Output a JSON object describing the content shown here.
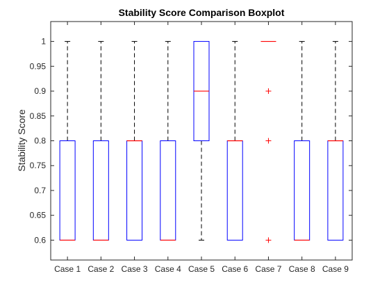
{
  "chart_data": {
    "type": "boxplot",
    "title": "Stability Score Comparison Boxplot",
    "xlabel": "",
    "ylabel": "Stability Score",
    "ylim": [
      0.56,
      1.04
    ],
    "yticks": [
      0.6,
      0.65,
      0.7,
      0.75,
      0.8,
      0.85,
      0.9,
      0.95,
      1
    ],
    "ytick_labels": [
      "0.6",
      "0.65",
      "0.7",
      "0.75",
      "0.8",
      "0.85",
      "0.9",
      "0.95",
      "1"
    ],
    "grid": false,
    "categories": [
      "Case 1",
      "Case 2",
      "Case 3",
      "Case 4",
      "Case 5",
      "Case 6",
      "Case 7",
      "Case 8",
      "Case 9"
    ],
    "boxes": [
      {
        "min": 0.6,
        "q1": 0.6,
        "median": 0.6,
        "q3": 0.8,
        "max": 1.0,
        "outliers": []
      },
      {
        "min": 0.6,
        "q1": 0.6,
        "median": 0.6,
        "q3": 0.8,
        "max": 1.0,
        "outliers": []
      },
      {
        "min": 0.6,
        "q1": 0.6,
        "median": 0.8,
        "q3": 0.8,
        "max": 1.0,
        "outliers": []
      },
      {
        "min": 0.6,
        "q1": 0.6,
        "median": 0.6,
        "q3": 0.8,
        "max": 1.0,
        "outliers": []
      },
      {
        "min": 0.6,
        "q1": 0.8,
        "median": 0.9,
        "q3": 1.0,
        "max": 1.0,
        "outliers": []
      },
      {
        "min": 0.6,
        "q1": 0.6,
        "median": 0.8,
        "q3": 0.8,
        "max": 1.0,
        "outliers": []
      },
      {
        "min": 1.0,
        "q1": 1.0,
        "median": 1.0,
        "q3": 1.0,
        "max": 1.0,
        "outliers": [
          0.9,
          0.8,
          0.6
        ]
      },
      {
        "min": 0.6,
        "q1": 0.6,
        "median": 0.6,
        "q3": 0.8,
        "max": 1.0,
        "outliers": []
      },
      {
        "min": 0.6,
        "q1": 0.6,
        "median": 0.8,
        "q3": 0.8,
        "max": 1.0,
        "outliers": []
      }
    ],
    "colors": {
      "box": "#0000ff",
      "median": "#ff0000",
      "whisker": "#000000",
      "outlier": "#ff0000",
      "axes": "#262626"
    }
  }
}
